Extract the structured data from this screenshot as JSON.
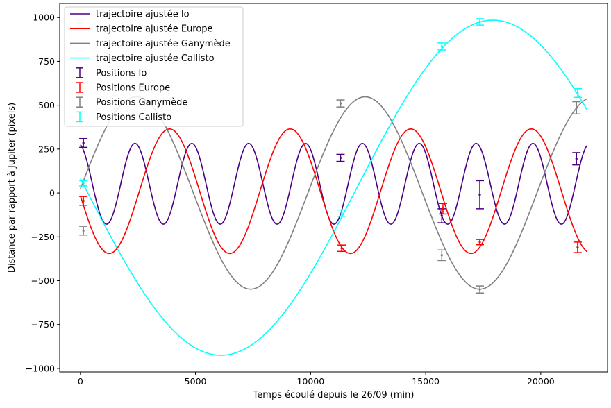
{
  "chart_data": {
    "type": "line",
    "title": "",
    "xlabel": "Temps écoulé depuis le 26/09 (min)",
    "ylabel": "Distance par rapport à Jupiter (pixels)",
    "xlim": [
      -900,
      22900
    ],
    "ylim": [
      -1020,
      1080
    ],
    "xticks": [
      0,
      5000,
      10000,
      15000,
      20000
    ],
    "xtick_labels": [
      "0",
      "5000",
      "10000",
      "15000",
      "20000"
    ],
    "yticks": [
      -1000,
      -750,
      -500,
      -250,
      0,
      250,
      500,
      750,
      1000
    ],
    "ytick_labels": [
      "−1000",
      "−750",
      "−500",
      "−250",
      "0",
      "250",
      "500",
      "750",
      "1000"
    ],
    "grid": false,
    "legend_position": "top-left",
    "fitted_curves": [
      {
        "name": "trajectoire ajustée Io",
        "color": "#4b0082",
        "amplitude": 230,
        "offset": 52,
        "period": 2470,
        "phase_x": 2370,
        "x_start": 0,
        "x_end": 22000
      },
      {
        "name": "trajectoire ajustée Europe",
        "color": "#ff0000",
        "amplitude": 355,
        "offset": 10,
        "period": 5240,
        "phase_x": 3870,
        "x_start": 0,
        "x_end": 22000
      },
      {
        "name": "trajectoire ajustée Ganymède",
        "color": "#808080",
        "amplitude": 548,
        "offset": 0,
        "period": 9950,
        "phase_x": 2420,
        "x_start": 0,
        "x_end": 22000
      },
      {
        "name": "trajectoire ajustée Callisto",
        "color": "#00ffff",
        "amplitude": 955,
        "offset": 30,
        "period": 23620,
        "phase_x": 17920,
        "x_start": 0,
        "x_end": 22000
      }
    ],
    "observed_series": [
      {
        "name": "Positions Io",
        "color": "#4b0082",
        "points": [
          [
            130,
            285,
            25
          ],
          [
            11300,
            200,
            20
          ],
          [
            15700,
            -130,
            40
          ],
          [
            17350,
            -10,
            80
          ],
          [
            21550,
            195,
            35
          ]
        ]
      },
      {
        "name": " Positions Europe",
        "color": "#ff0000",
        "points": [
          [
            130,
            -45,
            25
          ],
          [
            11350,
            -315,
            18
          ],
          [
            15750,
            -90,
            30
          ],
          [
            17350,
            -280,
            15
          ],
          [
            21600,
            -310,
            30
          ]
        ]
      },
      {
        "name": "Positions Ganymède",
        "color": "#808080",
        "points": [
          [
            130,
            -215,
            25
          ],
          [
            11300,
            510,
            20
          ],
          [
            15700,
            -355,
            30
          ],
          [
            17350,
            -550,
            20
          ],
          [
            21550,
            485,
            35
          ]
        ]
      },
      {
        "name": "Positions Callisto",
        "color": "#00ffff",
        "points": [
          [
            130,
            55,
            15
          ],
          [
            11350,
            -115,
            18
          ],
          [
            15700,
            835,
            20
          ],
          [
            17350,
            975,
            18
          ],
          [
            21600,
            570,
            25
          ]
        ]
      }
    ]
  }
}
